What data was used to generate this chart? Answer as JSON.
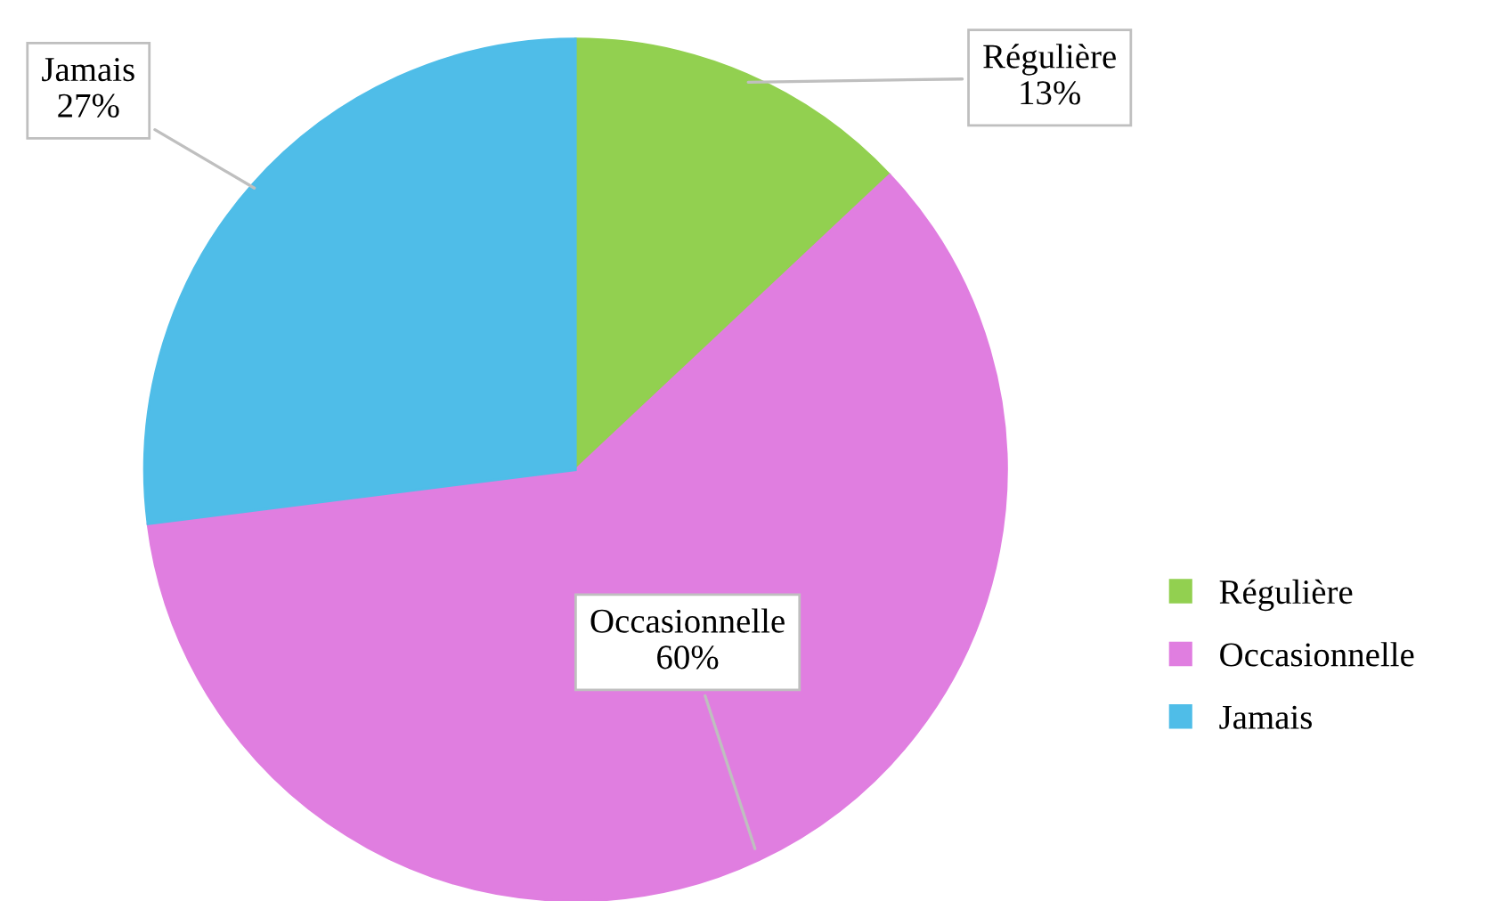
{
  "chart_data": {
    "type": "pie",
    "categories": [
      "Régulière",
      "Occasionnelle",
      "Jamais"
    ],
    "values": [
      13,
      60,
      27
    ],
    "colors": [
      "#92d050",
      "#e07ee0",
      "#4fbde8"
    ],
    "value_labels": [
      "13%",
      "60%",
      "27%"
    ],
    "legend": "right"
  }
}
